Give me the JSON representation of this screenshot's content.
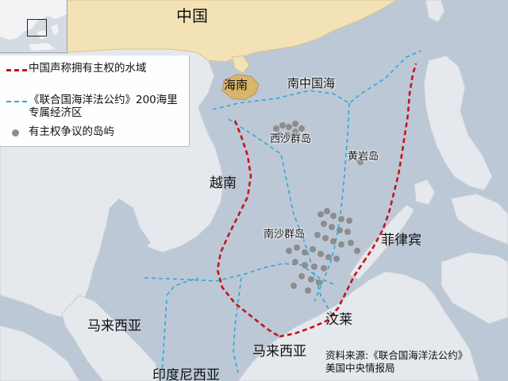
{
  "map": {
    "colors": {
      "sea": "#bcc8d6",
      "land": "#e5e8ec",
      "china": "#f3e2b5",
      "hainan": "#d9b56c",
      "claim_line": "#c4141b",
      "eez_line": "#2ea8d8",
      "disputed_islands": "#8d8d8d"
    },
    "legend": {
      "claim_line": "中国声称拥有主权的水域",
      "eez_line": "《联合国海洋法公约》200海里专属经济区",
      "islands": "有主权争议的岛屿"
    },
    "labels": {
      "china": "中国",
      "hainan": "海南",
      "south_china_sea": "南中国海",
      "paracel": "西沙群岛",
      "scarborough": "黄岩岛",
      "vietnam": "越南",
      "spratly": "南沙群岛",
      "philippines": "菲律宾",
      "malaysia_west": "马来西亚",
      "brunei": "汶莱",
      "malaysia_east": "马来西亚",
      "indonesia": "印度尼西亚"
    },
    "source": {
      "line1": "资料来源:《联合国海洋法公约》",
      "line2": "美国中央情报局"
    }
  }
}
